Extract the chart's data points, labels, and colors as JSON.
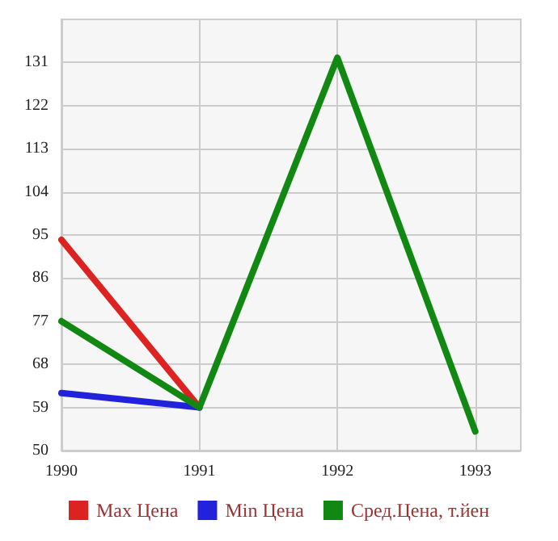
{
  "chart_data": {
    "type": "line",
    "xlim": [
      1990,
      1993.33
    ],
    "xticks": [
      1990,
      1991,
      1992,
      1993
    ],
    "ylim": [
      50,
      140
    ],
    "yticks": [
      50,
      59,
      68,
      77,
      86,
      95,
      104,
      113,
      122,
      131
    ],
    "grid": true,
    "legend": "bottom",
    "marker": "none",
    "line_style": "solid",
    "series": [
      {
        "name": "Max Цена",
        "color": "#dd2222",
        "x": [
          1990,
          1991
        ],
        "values": [
          94,
          59
        ]
      },
      {
        "name": "Min Цена",
        "color": "#2222dd",
        "x": [
          1990,
          1991
        ],
        "values": [
          62,
          59
        ]
      },
      {
        "name": "Сред.Цена, т.йен",
        "color": "#118811",
        "x": [
          1990,
          1991,
          1992,
          1993
        ],
        "values": [
          77,
          59,
          132,
          54
        ]
      }
    ]
  }
}
